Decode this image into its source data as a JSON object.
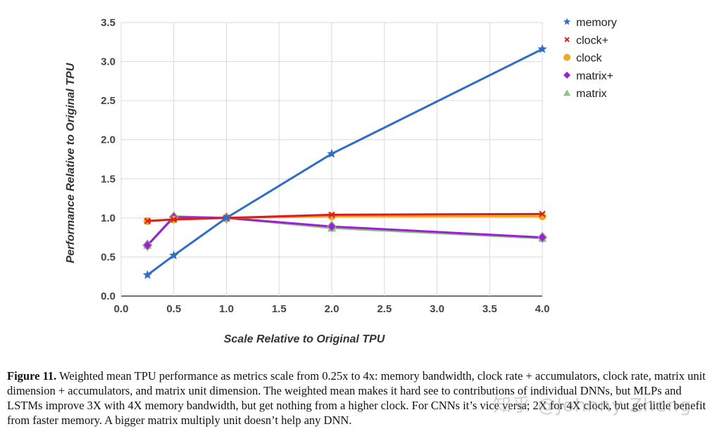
{
  "chart_data": {
    "type": "line",
    "title": "",
    "xlabel": "Scale Relative to Original TPU",
    "ylabel": "Performance Relative to Original TPU",
    "x_tick_labels": [
      "0.0",
      "0.5",
      "1.0",
      "1.5",
      "2.0",
      "2.5",
      "3.0",
      "3.5",
      "4.0"
    ],
    "y_ticks": [
      "0.0",
      "0.5",
      "1.0",
      "1.5",
      "2.0",
      "2.5",
      "3.0",
      "3.5"
    ],
    "ylim": [
      0,
      3.5
    ],
    "grid": true,
    "legend_position": "right",
    "x_categories": [
      0.25,
      0.5,
      1.0,
      2.0,
      4.0
    ],
    "series": [
      {
        "name": "matrix",
        "color": "#8bc37d",
        "marker": "triangle",
        "values": [
          0.65,
          1.02,
          1.0,
          0.87,
          0.74
        ]
      },
      {
        "name": "matrix+",
        "color": "#9b1fd6",
        "marker": "diamond",
        "values": [
          0.65,
          1.01,
          1.0,
          0.89,
          0.75
        ]
      },
      {
        "name": "clock",
        "color": "#f5a623",
        "marker": "circle",
        "values": [
          0.96,
          0.98,
          1.0,
          1.02,
          1.02
        ]
      },
      {
        "name": "clock+",
        "color": "#d62020",
        "marker": "x",
        "values": [
          0.96,
          0.98,
          1.0,
          1.04,
          1.05
        ]
      },
      {
        "name": "memory",
        "color": "#2f6ec6",
        "marker": "star",
        "values": [
          0.27,
          0.52,
          1.0,
          1.82,
          3.16
        ]
      }
    ],
    "legend_order": [
      "memory",
      "clock+",
      "clock",
      "matrix+",
      "matrix"
    ]
  },
  "caption": {
    "label": "Figure 11.",
    "text": " Weighted mean TPU performance as metrics scale from 0.25x to 4x: memory bandwidth, clock rate + accumulators, clock rate, matrix unit dimension + accumulators, and matrix unit dimension. The weighted mean makes it hard see to contributions of individual DNNs, but  MLPs and LSTMs improve 3X with 4X memory bandwidth, but get nothing from a higher clock. For CNNs it’s vice versa; 2X for 4X clock, but get little benefit from faster memory. A bigger matrix multiply unit doesn’t help any DNN."
  },
  "watermark": "知乎 @Johnny Zheng"
}
